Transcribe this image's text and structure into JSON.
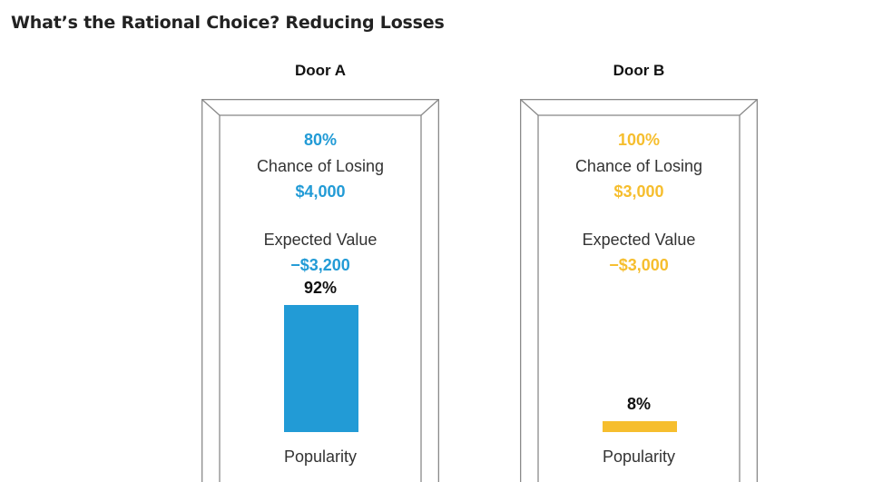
{
  "title": "What’s the Rational Choice? Reducing Losses",
  "colors": {
    "door_a": "#229bd6",
    "door_b": "#f6be2e",
    "frame": "#8a8a8a"
  },
  "doors": [
    {
      "name": "Door A",
      "chance_pct": "80%",
      "chance_label": "Chance of Losing",
      "amount": "$4,000",
      "ev_label": "Expected Value",
      "ev_amount": "−$3,200",
      "popularity_label": "92%",
      "popularity_caption": "Popularity"
    },
    {
      "name": "Door B",
      "chance_pct": "100%",
      "chance_label": "Chance of Losing",
      "amount": "$3,000",
      "ev_label": "Expected Value",
      "ev_amount": "−$3,000",
      "popularity_label": "8%",
      "popularity_caption": "Popularity"
    }
  ],
  "chart_data": {
    "type": "bar",
    "categories": [
      "Door A",
      "Door B"
    ],
    "values": [
      92,
      8
    ],
    "ylim": [
      0,
      100
    ],
    "unit": "%",
    "xlabel": "Popularity",
    "grid": false
  }
}
